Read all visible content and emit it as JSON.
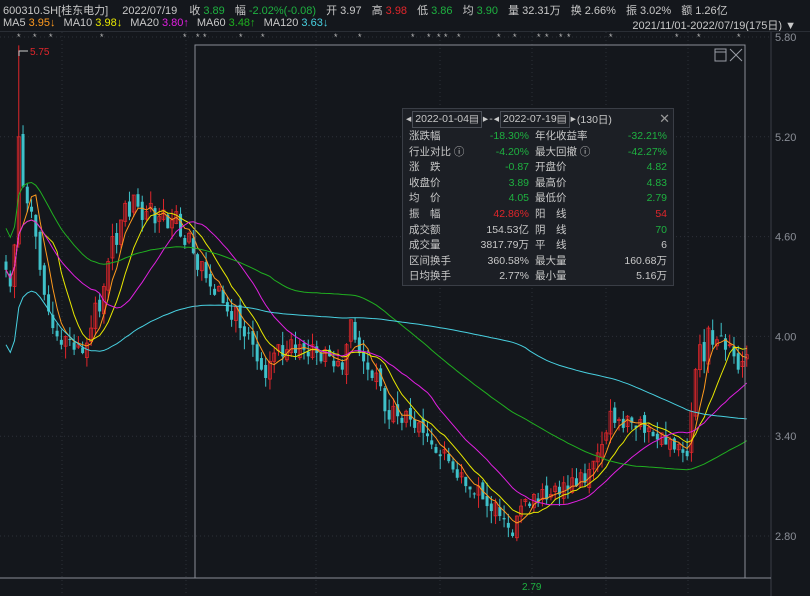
{
  "header": {
    "symbol": "600310.SH[桂东电力]",
    "date": "2022/07/19",
    "close_label": "收",
    "close": "3.89",
    "change_label": "幅",
    "change": "-2.02%(-0.08)",
    "open_label": "开",
    "open": "3.97",
    "high_label": "高",
    "high": "3.98",
    "low_label": "低",
    "low": "3.86",
    "avg_label": "均",
    "avg": "3.90",
    "volume_label": "量",
    "volume": "32.31万",
    "turnover_label": "换",
    "turnover": "2.66%",
    "amplitude_label": "振",
    "amplitude": "3.02%",
    "amount_label": "额",
    "amount": "1.26亿"
  },
  "ma_legend": [
    {
      "name": "MA5",
      "value": "3.95↓",
      "color": "#ff9a1e"
    },
    {
      "name": "MA10",
      "value": "3.98↓",
      "color": "#e8e800"
    },
    {
      "name": "MA20",
      "value": "3.80↑",
      "color": "#e020e0"
    },
    {
      "name": "MA60",
      "value": "3.48↑",
      "color": "#20b020"
    },
    {
      "name": "MA120",
      "value": "3.63↓",
      "color": "#48d0e0"
    }
  ],
  "range_label": "2021/11/01-2022/07/19(175日)",
  "popup": {
    "start_date": "2022-01-04",
    "end_date": "2022-07-19",
    "sep": "-",
    "days": "(130日)",
    "rows": [
      [
        "涨跌幅",
        "-18.30%",
        "g",
        "年化收益率",
        "-32.21%",
        "g"
      ],
      [
        "行业对比 ⓘ",
        "-4.20%",
        "g",
        "最大回撤 ⓘ",
        "-42.27%",
        "g"
      ],
      [
        "涨　跌",
        "-0.87",
        "g",
        "开盘价",
        "4.82",
        "g"
      ],
      [
        "收盘价",
        "3.89",
        "g",
        "最高价",
        "4.83",
        "g"
      ],
      [
        "均　价",
        "4.05",
        "g",
        "最低价",
        "2.79",
        "g"
      ],
      [
        "振　幅",
        "42.86%",
        "r",
        "阳　线",
        "54",
        "r"
      ],
      [
        "成交额",
        "154.53亿",
        "w",
        "阴　线",
        "70",
        "g"
      ],
      [
        "成交量",
        "3817.79万",
        "w",
        "平　线",
        "6",
        "w"
      ],
      [
        "区间换手",
        "360.58%",
        "w",
        "最大量",
        "160.68万",
        "w"
      ],
      [
        "日均换手",
        "2.77%",
        "w",
        "最小量",
        "5.16万",
        "w"
      ]
    ]
  },
  "chart_data": {
    "type": "candlestick",
    "y_ticks": [
      "5.80",
      "5.20",
      "4.60",
      "4.00",
      "3.40",
      "2.80"
    ],
    "ylim": [
      2.8,
      5.8
    ],
    "max_label": "5.75",
    "min_label": "2.79",
    "up_color": "#e0262b",
    "down_color": "#3fc1c9",
    "closes": [
      4.4,
      4.3,
      4.55,
      5.2,
      4.9,
      4.8,
      4.75,
      4.6,
      4.4,
      4.25,
      4.15,
      4.05,
      4.0,
      3.95,
      4.0,
      3.98,
      3.92,
      3.95,
      3.9,
      3.96,
      4.05,
      4.2,
      4.15,
      4.3,
      4.45,
      4.6,
      4.55,
      4.7,
      4.8,
      4.72,
      4.85,
      4.78,
      4.7,
      4.75,
      4.8,
      4.68,
      4.72,
      4.76,
      4.65,
      4.7,
      4.75,
      4.6,
      4.55,
      4.62,
      4.5,
      4.4,
      4.45,
      4.35,
      4.3,
      4.25,
      4.3,
      4.2,
      4.15,
      4.1,
      4.18,
      4.05,
      4.0,
      4.02,
      3.95,
      3.85,
      3.8,
      3.75,
      3.85,
      3.9,
      3.95,
      3.88,
      3.92,
      3.98,
      3.9,
      3.95,
      3.92,
      3.88,
      3.95,
      3.9,
      3.85,
      3.92,
      3.88,
      3.82,
      3.85,
      3.8,
      3.95,
      4.1,
      3.98,
      3.9,
      3.85,
      3.8,
      3.75,
      3.78,
      3.7,
      3.55,
      3.5,
      3.58,
      3.52,
      3.48,
      3.55,
      3.5,
      3.45,
      3.48,
      3.42,
      3.4,
      3.35,
      3.3,
      3.28,
      3.32,
      3.25,
      3.2,
      3.15,
      3.18,
      3.1,
      3.08,
      3.05,
      3.1,
      3.02,
      2.98,
      2.95,
      3.0,
      2.92,
      2.9,
      2.85,
      2.8,
      2.92,
      2.98,
      3.02,
      2.98,
      3.05,
      3.0,
      3.08,
      3.02,
      3.05,
      3.1,
      3.05,
      3.12,
      3.08,
      3.15,
      3.1,
      3.18,
      3.12,
      3.2,
      3.25,
      3.3,
      3.35,
      3.42,
      3.55,
      3.48,
      3.5,
      3.45,
      3.52,
      3.48,
      3.45,
      3.5,
      3.42,
      3.45,
      3.4,
      3.38,
      3.42,
      3.35,
      3.38,
      3.32,
      3.35,
      3.3,
      3.28,
      3.55,
      3.8,
      3.95,
      3.85,
      4.05,
      3.95,
      3.98,
      4.0,
      3.92,
      3.95,
      3.88,
      3.8,
      3.85,
      3.89
    ]
  }
}
